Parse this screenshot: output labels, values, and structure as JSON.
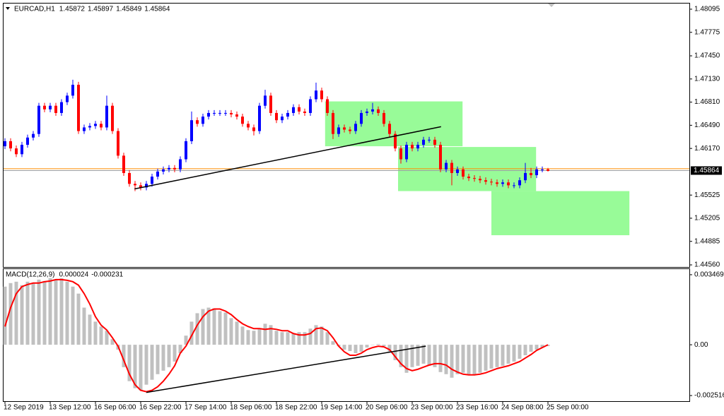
{
  "chart_data": [
    {
      "type": "candlestick",
      "symbol": "EURCAD,H1",
      "header_values": [
        1.45872,
        1.45897,
        1.45849,
        1.45864
      ],
      "categories": [
        "12 Sep 2019",
        null,
        null,
        null,
        null,
        null,
        null,
        null,
        "13 Sep 12:00",
        null,
        null,
        null,
        null,
        null,
        null,
        null,
        "16 Sep 06:00",
        null,
        null,
        null,
        null,
        null,
        null,
        null,
        "16 Sep 22:00",
        null,
        null,
        null,
        null,
        null,
        null,
        null,
        "17 Sep 14:00",
        null,
        null,
        null,
        null,
        null,
        null,
        null,
        "18 Sep 06:00",
        null,
        null,
        null,
        null,
        null,
        null,
        null,
        "18 Sep 22:00",
        null,
        null,
        null,
        null,
        null,
        null,
        null,
        "19 Sep 14:00",
        null,
        null,
        null,
        null,
        null,
        null,
        null,
        "20 Sep 06:00",
        null,
        null,
        null,
        null,
        null,
        null,
        null,
        "23 Sep 00:00",
        null,
        null,
        null,
        null,
        null,
        null,
        null,
        "23 Sep 16:00",
        null,
        null,
        null,
        null,
        null,
        null,
        null,
        "24 Sep 08:00",
        null,
        null,
        null,
        null,
        null,
        null,
        null,
        "25 Sep 00:00"
      ],
      "open": [
        1.462,
        1.4627,
        1.4617,
        1.4609,
        1.4622,
        1.4632,
        1.4637,
        1.4676,
        1.4671,
        1.4676,
        1.4666,
        1.4681,
        1.469,
        1.4705,
        1.4641,
        1.4646,
        1.4648,
        1.4651,
        1.4646,
        1.4676,
        1.4641,
        1.4607,
        1.4583,
        1.4568,
        1.4566,
        1.4563,
        1.4568,
        1.4578,
        1.4585,
        1.4588,
        1.459,
        1.4588,
        1.4602,
        1.4627,
        1.4656,
        1.4651,
        1.4661,
        1.4666,
        1.4666,
        1.4666,
        1.4666,
        1.4664,
        1.4661,
        1.4651,
        1.4646,
        1.4641,
        1.4676,
        1.469,
        1.4666,
        1.4656,
        1.4661,
        1.4666,
        1.4674,
        1.4668,
        1.4666,
        1.4685,
        1.4697,
        1.4685,
        1.4666,
        1.4637,
        1.4646,
        1.4643,
        1.4641,
        1.4651,
        1.4666,
        1.4668,
        1.4671,
        1.4666,
        1.4651,
        1.4637,
        1.4617,
        1.4602,
        1.4622,
        1.4617,
        1.4622,
        1.4629,
        1.4629,
        1.4622,
        1.4588,
        1.4597,
        1.4583,
        1.4588,
        1.4578,
        1.4576,
        1.4575,
        1.4573,
        1.4571,
        1.457,
        1.4568,
        1.457,
        1.4566,
        1.4566,
        1.4573,
        1.4583,
        1.458,
        1.4588,
        1.4588
      ],
      "high": [
        1.4631,
        1.4631,
        1.4621,
        1.4626,
        1.4636,
        1.4641,
        1.468,
        1.468,
        1.468,
        1.468,
        1.4685,
        1.4694,
        1.4712,
        1.4709,
        1.465,
        1.4652,
        1.4655,
        1.4655,
        1.469,
        1.468,
        1.4645,
        1.4611,
        1.4587,
        1.4572,
        1.457,
        1.4572,
        1.4582,
        1.4589,
        1.4592,
        1.4594,
        1.4594,
        1.4606,
        1.4631,
        1.4668,
        1.466,
        1.4665,
        1.467,
        1.467,
        1.467,
        1.467,
        1.467,
        1.4668,
        1.4665,
        1.4655,
        1.465,
        1.468,
        1.4698,
        1.4694,
        1.467,
        1.4665,
        1.467,
        1.4678,
        1.4678,
        1.4672,
        1.4689,
        1.4708,
        1.4701,
        1.4689,
        1.467,
        1.465,
        1.465,
        1.4647,
        1.4655,
        1.467,
        1.4672,
        1.468,
        1.4675,
        1.467,
        1.4655,
        1.4641,
        1.4621,
        1.4626,
        1.4626,
        1.4626,
        1.4633,
        1.4633,
        1.4633,
        1.4626,
        1.4601,
        1.4601,
        1.4592,
        1.4592,
        1.4582,
        1.458,
        1.4579,
        1.4577,
        1.4575,
        1.4574,
        1.4574,
        1.4574,
        1.457,
        1.4577,
        1.4597,
        1.459,
        1.4592,
        1.4592,
        1.459
      ],
      "low": [
        1.4616,
        1.4613,
        1.4605,
        1.4605,
        1.4618,
        1.4628,
        1.4633,
        1.4667,
        1.4667,
        1.4662,
        1.4662,
        1.4677,
        1.4686,
        1.4637,
        1.4637,
        1.4642,
        1.4644,
        1.4642,
        1.4642,
        1.4637,
        1.4603,
        1.4579,
        1.4564,
        1.4558,
        1.4559,
        1.4559,
        1.4564,
        1.4574,
        1.4581,
        1.4584,
        1.4584,
        1.4584,
        1.4598,
        1.4623,
        1.4647,
        1.4647,
        1.4657,
        1.4662,
        1.4662,
        1.4662,
        1.466,
        1.4657,
        1.4647,
        1.4642,
        1.4635,
        1.4637,
        1.4672,
        1.4662,
        1.4652,
        1.4652,
        1.4657,
        1.4662,
        1.4664,
        1.4662,
        1.4662,
        1.4681,
        1.4681,
        1.4662,
        1.463,
        1.4633,
        1.4639,
        1.4637,
        1.4637,
        1.4647,
        1.4662,
        1.4664,
        1.4662,
        1.4647,
        1.4633,
        1.4613,
        1.4596,
        1.4598,
        1.4613,
        1.4613,
        1.4618,
        1.4625,
        1.4618,
        1.4584,
        1.4584,
        1.4566,
        1.4579,
        1.4574,
        1.4572,
        1.4571,
        1.4569,
        1.4567,
        1.4566,
        1.4564,
        1.4564,
        1.4562,
        1.4562,
        1.4562,
        1.4569,
        1.4576,
        1.4576,
        1.4584,
        1.4585
      ],
      "close": [
        1.4627,
        1.4617,
        1.4609,
        1.4622,
        1.4632,
        1.4637,
        1.4676,
        1.4671,
        1.4676,
        1.4666,
        1.4681,
        1.469,
        1.4705,
        1.4641,
        1.4646,
        1.4648,
        1.4651,
        1.4646,
        1.4676,
        1.4641,
        1.4607,
        1.4583,
        1.4568,
        1.4566,
        1.4563,
        1.4568,
        1.4578,
        1.4585,
        1.4588,
        1.459,
        1.4588,
        1.4602,
        1.4627,
        1.4656,
        1.4651,
        1.4661,
        1.4666,
        1.4666,
        1.4666,
        1.4666,
        1.4664,
        1.4661,
        1.4651,
        1.4646,
        1.4641,
        1.4676,
        1.469,
        1.4666,
        1.4656,
        1.4661,
        1.4666,
        1.4674,
        1.4668,
        1.4666,
        1.4685,
        1.4697,
        1.4685,
        1.4666,
        1.4637,
        1.4646,
        1.4643,
        1.4641,
        1.4651,
        1.4666,
        1.4668,
        1.4671,
        1.4666,
        1.4651,
        1.4637,
        1.4617,
        1.4602,
        1.4622,
        1.4617,
        1.4622,
        1.4629,
        1.4629,
        1.4622,
        1.4588,
        1.4597,
        1.4583,
        1.4588,
        1.4578,
        1.4576,
        1.4575,
        1.4573,
        1.4571,
        1.457,
        1.4568,
        1.457,
        1.4566,
        1.4566,
        1.4573,
        1.4583,
        1.458,
        1.4588,
        1.4588,
        1.4586
      ],
      "up_color": "#0000ff",
      "down_color": "#ff0000",
      "ylim": [
        1.44531,
        1.48173
      ],
      "yticks": [
        1.48095,
        1.47775,
        {
          "value": 1.4745,
          "label": "1.47450"
        },
        {
          "value": 1.4713,
          "label": "1.47130"
        },
        {
          "value": 1.4681,
          "label": "1.46810"
        },
        {
          "value": 1.4649,
          "label": "1.46490"
        },
        {
          "value": 1.4617,
          "label": "1.46170"
        },
        1.45525,
        1.45205,
        1.44885,
        {
          "value": 1.4456,
          "label": "1.44560"
        }
      ],
      "last_price": 1.45864,
      "ask_price": 1.4589,
      "ask_color": "#ff8c00",
      "zone_color": "#98fb98",
      "zones": [
        {
          "start": 56.6,
          "end": 80.9,
          "top": 1.4682,
          "bottom": 1.462
        },
        {
          "start": 69.5,
          "end": 93.9,
          "top": 1.4619,
          "bottom": 1.4558
        },
        {
          "start": 86,
          "end": 110.4,
          "top": 1.4558,
          "bottom": 1.4497
        }
      ],
      "trendline": {
        "x": [
          22.9,
          77.1
        ],
        "y": [
          1.4561,
          1.4647
        ]
      }
    },
    {
      "type": "macd",
      "title": "MACD(12,26,9)",
      "header_values": [
        2.4e-05,
        -0.000231
      ],
      "values": [
        0.00288,
        0.003054,
        0.003123,
        0.00295,
        0.003123,
        0.003054,
        0.003227,
        0.003158,
        0.003297,
        0.003227,
        0.003297,
        0.003123,
        0.00288,
        0.002533,
        0.001839,
        0.001492,
        0.001145,
        0.000902,
        0.000694,
        0.000278,
        -0.000243,
        -0.00111,
        -0.001804,
        -0.002151,
        -0.002256,
        -0.001978,
        -0.001735,
        -0.001457,
        -0.001284,
        -0.00111,
        -0.000833,
        -0.000416,
        0.000451,
        0.001145,
        0.001562,
        0.00177,
        0.001839,
        0.001804,
        0.001666,
        0.001596,
        0.001319,
        0.001145,
        0.000902,
        0.000729,
        0.000694,
        0.000798,
        0.001041,
        0.000972,
        0.000694,
        0.000625,
        0.000625,
        0.000555,
        0.000625,
        0.000625,
        0.000798,
        0.000972,
        0.000902,
        0.000625,
        0.000174,
        -6.9e-05,
        -0.000243,
        -0.000312,
        -0.000416,
        -0.000347,
        -0.000139,
        0,
        3.5e-05,
        -6.9e-05,
        -0.000347,
        -0.000763,
        -0.00111,
        -0.001388,
        -0.00111,
        -0.001041,
        -0.000937,
        -0.001041,
        -0.00111,
        -0.001353,
        -0.001457,
        -0.001631,
        -0.001457,
        -0.001388,
        -0.001457,
        -0.001457,
        -0.001388,
        -0.001284,
        -0.00118,
        -0.00111,
        -0.001041,
        -0.000937,
        -0.000833,
        -0.000694,
        -0.000521,
        -0.000347,
        -0.000243,
        -0.000139,
        -6.9e-05
      ],
      "color": "#c0c0c0",
      "signal": [
        0.000902,
        0.001839,
        0.002533,
        0.00288,
        0.002984,
        0.003054,
        0.003054,
        0.003123,
        0.003158,
        0.003227,
        0.003227,
        0.003192,
        0.003123,
        0.00295,
        0.002533,
        0.002013,
        0.001388,
        0.000972,
        0.000729,
        0.000347,
        -6.9e-05,
        -0.000763,
        -0.001457,
        -0.001978,
        -0.002256,
        -0.002325,
        -0.002256,
        -0.002082,
        -0.001804,
        -0.001457,
        -0.001041,
        -0.000416,
        -6.9e-05,
        0.000451,
        0.000972,
        0.001388,
        0.001666,
        0.00177,
        0.00177,
        0.001666,
        0.001492,
        0.001249,
        0.001041,
        0.000902,
        0.000798,
        0.000798,
        0.000763,
        0.000798,
        0.000763,
        0.000694,
        0.000694,
        0.000555,
        0.000486,
        0.000486,
        0.000555,
        0.000798,
        0.000833,
        0.000694,
        0.000347,
        -6.9e-05,
        -0.000347,
        -0.000521,
        -0.000521,
        -0.000416,
        -0.000243,
        -0.000139,
        -6.9e-05,
        -0.000104,
        -0.000243,
        -0.00059,
        -0.000937,
        -0.00118,
        -0.001284,
        -0.001215,
        -0.00111,
        -0.001006,
        -0.000937,
        -0.000937,
        -0.001006,
        -0.001215,
        -0.001353,
        -0.001457,
        -0.001492,
        -0.001492,
        -0.001457,
        -0.001388,
        -0.001284,
        -0.00118,
        -0.00111,
        -0.001041,
        -0.000937,
        -0.000833,
        -0.000659,
        -0.000486,
        -0.000278,
        -0.000139,
        0
      ],
      "signal_color": "#ff0000",
      "ylim": [
        -0.002794,
        0.003747
      ],
      "yticks": [
        0.003469,
        {
          "value": 0,
          "label": "0.00"
        },
        -0.002516
      ],
      "trendline": {
        "x": [
          25,
          74.4
        ],
        "y": [
          -0.00236,
          -7e-05
        ]
      }
    }
  ]
}
